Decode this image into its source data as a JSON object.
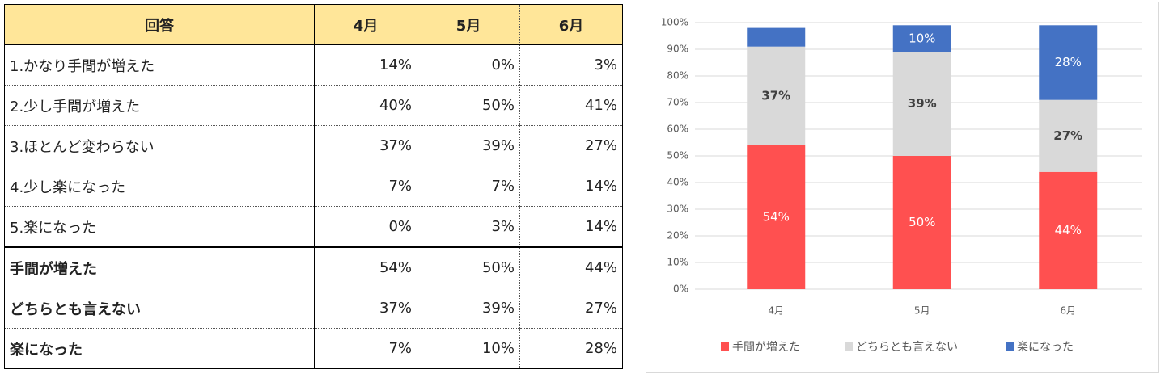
{
  "table": {
    "header": [
      "回答",
      "4月",
      "5月",
      "6月"
    ],
    "rows": [
      [
        "1.かなり手間が増えた",
        "14%",
        "0%",
        "3%"
      ],
      [
        "2.少し手間が増えた",
        "40%",
        "50%",
        "41%"
      ],
      [
        "3.ほとんど変わらない",
        "37%",
        "39%",
        "27%"
      ],
      [
        "4.少し楽になった",
        "7%",
        "7%",
        "14%"
      ],
      [
        "5.楽になった",
        "0%",
        "3%",
        "14%"
      ],
      [
        "手間が増えた",
        "54%",
        "50%",
        "44%"
      ],
      [
        "どちらとも言えない",
        "37%",
        "39%",
        "27%"
      ],
      [
        "楽になった",
        "7%",
        "10%",
        "28%"
      ]
    ]
  },
  "chart_data": {
    "type": "stacked-bar",
    "categories": [
      "4月",
      "5月",
      "6月"
    ],
    "series": [
      {
        "name": "手間が増えた",
        "color": "#ff5050",
        "values": [
          54,
          50,
          44
        ],
        "value_labels": [
          "54%",
          "50%",
          "44%"
        ]
      },
      {
        "name": "どちらとも言えない",
        "color": "#d9d9d9",
        "values": [
          37,
          39,
          27
        ],
        "value_labels": [
          "37%",
          "39%",
          "27%"
        ]
      },
      {
        "name": "楽になった",
        "color": "#4472c4",
        "values": [
          7,
          10,
          28
        ],
        "value_labels": [
          null,
          "10%",
          "28%"
        ]
      }
    ],
    "ylim": [
      0,
      100
    ],
    "yticks": [
      {
        "value": 0,
        "label": "0%"
      },
      {
        "value": 10,
        "label": "10%"
      },
      {
        "value": 20,
        "label": "20%"
      },
      {
        "value": 30,
        "label": "30%"
      },
      {
        "value": 40,
        "label": "40%"
      },
      {
        "value": 50,
        "label": "50%"
      },
      {
        "value": 60,
        "label": "60%"
      },
      {
        "value": 70,
        "label": "70%"
      },
      {
        "value": 80,
        "label": "80%"
      },
      {
        "value": 90,
        "label": "90%"
      },
      {
        "value": 100,
        "label": "100%"
      }
    ],
    "grid": true,
    "legend": "bottom"
  }
}
